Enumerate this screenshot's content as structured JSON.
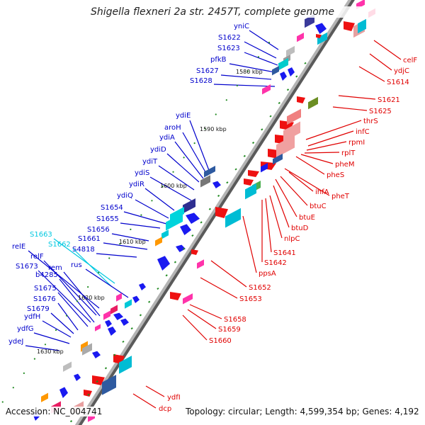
{
  "title": "Shigella flexneri 2a str. 2457T, complete genome",
  "accession": "Accession: NC_004741",
  "summary": "Topology: circular; Length: 4,599,354 bp; Genes: 4,192",
  "colors": {
    "left_label": "#0000cc",
    "right_label": "#e00000",
    "highlight_label": "#00c8e0",
    "backbone": "#8c8c8c",
    "tick": "#228b22"
  },
  "ruler": [
    {
      "label": "1580 kbp"
    },
    {
      "label": "1590 kbp"
    },
    {
      "label": "1600 kbp"
    },
    {
      "label": "1610 kbp"
    },
    {
      "label": "1620 kbp"
    },
    {
      "label": "1630 kbp"
    }
  ],
  "left_labels": [
    {
      "text": "yniC"
    },
    {
      "text": "S1622"
    },
    {
      "text": "S1623"
    },
    {
      "text": "pfkB"
    },
    {
      "text": "S1627"
    },
    {
      "text": "S1628"
    },
    {
      "text": "ydiE"
    },
    {
      "text": "aroH"
    },
    {
      "text": "ydiA"
    },
    {
      "text": "ydiD"
    },
    {
      "text": "ydiT"
    },
    {
      "text": "ydiS"
    },
    {
      "text": "ydiR"
    },
    {
      "text": "ydiQ"
    },
    {
      "text": "S1654"
    },
    {
      "text": "S1655"
    },
    {
      "text": "S1656"
    },
    {
      "text": "S1661"
    },
    {
      "text": "S1663"
    },
    {
      "text": "S4818"
    },
    {
      "text": "relE"
    },
    {
      "text": "S1662"
    },
    {
      "text": "relF"
    },
    {
      "text": "rus"
    },
    {
      "text": "S1673"
    },
    {
      "text": "rem"
    },
    {
      "text": "b4285"
    },
    {
      "text": "S1675"
    },
    {
      "text": "S1676"
    },
    {
      "text": "S1679"
    },
    {
      "text": "ydfH"
    },
    {
      "text": "ydfG"
    },
    {
      "text": "ydeJ"
    }
  ],
  "right_labels": [
    {
      "text": "celF"
    },
    {
      "text": "ydjC"
    },
    {
      "text": "S1614"
    },
    {
      "text": "S1621"
    },
    {
      "text": "S1625"
    },
    {
      "text": "thrS"
    },
    {
      "text": "infC"
    },
    {
      "text": "rpmI"
    },
    {
      "text": "rplT"
    },
    {
      "text": "pheM"
    },
    {
      "text": "pheS"
    },
    {
      "text": "pheT"
    },
    {
      "text": "ihfA"
    },
    {
      "text": "btuC"
    },
    {
      "text": "btuE"
    },
    {
      "text": "btuD"
    },
    {
      "text": "nlpC"
    },
    {
      "text": "S1641"
    },
    {
      "text": "S1642"
    },
    {
      "text": "ppsA"
    },
    {
      "text": "S1652"
    },
    {
      "text": "S1653"
    },
    {
      "text": "S1658"
    },
    {
      "text": "S1659"
    },
    {
      "text": "S1660"
    },
    {
      "text": "ydfI"
    },
    {
      "text": "dcp"
    }
  ]
}
